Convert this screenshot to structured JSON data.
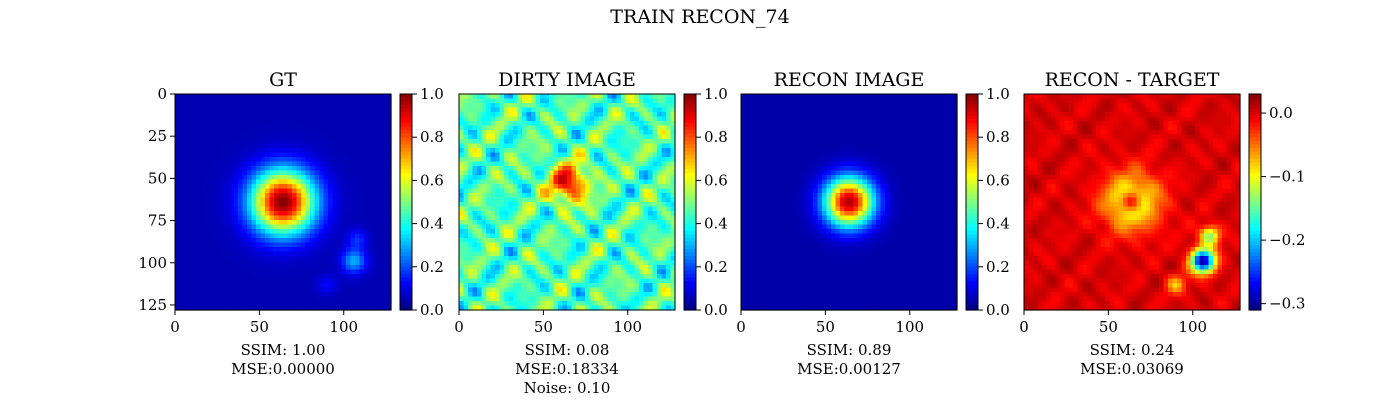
{
  "figure": {
    "title": "TRAIN RECON_74"
  },
  "colormap": [
    "#00007f",
    "#0000ff",
    "#007fff",
    "#00ffff",
    "#7fff7f",
    "#ffff00",
    "#ff7f00",
    "#ff0000",
    "#7f0000"
  ],
  "chart_data": [
    {
      "type": "heatmap",
      "title": "GT",
      "xlim": [
        0,
        128
      ],
      "ylim": [
        128,
        0
      ],
      "xticks": [
        0,
        50,
        100
      ],
      "yticks": [
        0,
        25,
        50,
        75,
        100,
        125
      ],
      "colorbar": {
        "range": [
          0.0,
          1.0
        ],
        "ticks": [
          "0.0",
          "0.2",
          "0.4",
          "0.6",
          "0.8",
          "1.0"
        ],
        "tick_values": [
          0,
          0.2,
          0.4,
          0.6,
          0.8,
          1.0
        ]
      },
      "background_value": 0.05,
      "blobs": [
        {
          "x": 64,
          "y": 64,
          "sigma": 13,
          "amp": 0.95
        },
        {
          "x": 106,
          "y": 99,
          "sigma": 5,
          "amp": 0.25
        },
        {
          "x": 108,
          "y": 86,
          "sigma": 4,
          "amp": 0.12
        },
        {
          "x": 90,
          "y": 113,
          "sigma": 4,
          "amp": 0.08
        }
      ],
      "metrics": [
        "SSIM: 1.00",
        "MSE:0.00000"
      ]
    },
    {
      "type": "heatmap",
      "title": "DIRTY IMAGE",
      "xlim": [
        0,
        128
      ],
      "ylim": [
        128,
        0
      ],
      "xticks": [
        0,
        50,
        100
      ],
      "colorbar": {
        "range": [
          0.0,
          1.0
        ],
        "ticks": [
          "0.0",
          "0.2",
          "0.4",
          "0.6",
          "0.8",
          "1.0"
        ],
        "tick_values": [
          0,
          0.2,
          0.4,
          0.6,
          0.8,
          1.0
        ]
      },
      "background_value": 0.45,
      "noise_amplitude": 0.22,
      "blobs": [
        {
          "x": 65,
          "y": 53,
          "sigma": 8,
          "amp": 0.45
        }
      ],
      "metrics": [
        "SSIM: 0.08",
        "MSE:0.18334",
        "Noise: 0.10"
      ]
    },
    {
      "type": "heatmap",
      "title": "RECON IMAGE",
      "xlim": [
        0,
        128
      ],
      "ylim": [
        128,
        0
      ],
      "xticks": [
        0,
        50,
        100
      ],
      "colorbar": {
        "range": [
          0.0,
          1.0
        ],
        "ticks": [
          "0.0",
          "0.2",
          "0.4",
          "0.6",
          "0.8",
          "1.0"
        ],
        "tick_values": [
          0,
          0.2,
          0.4,
          0.6,
          0.8,
          1.0
        ]
      },
      "background_value": 0.04,
      "blobs": [
        {
          "x": 64,
          "y": 64,
          "sigma": 10,
          "amp": 0.92
        }
      ],
      "metrics": [
        "SSIM: 0.89",
        "MSE:0.00127"
      ]
    },
    {
      "type": "heatmap",
      "title": "RECON - TARGET",
      "xlim": [
        0,
        128
      ],
      "ylim": [
        128,
        0
      ],
      "xticks": [
        0,
        50,
        100
      ],
      "colorbar": {
        "range": [
          -0.31,
          0.03
        ],
        "ticks": [
          "0.0",
          "−0.1",
          "−0.2",
          "−0.3"
        ],
        "tick_values": [
          0.0,
          -0.1,
          -0.2,
          -0.3
        ]
      },
      "background_value": 0.0,
      "noise_amplitude": 0.02,
      "blobs": [
        {
          "x": 64,
          "y": 64,
          "sigma": 12,
          "amp": -0.12
        },
        {
          "x": 64,
          "y": 64,
          "sigma": 4,
          "amp": 0.1
        },
        {
          "x": 106,
          "y": 99,
          "sigma": 5,
          "amp": -0.3
        },
        {
          "x": 110,
          "y": 84,
          "sigma": 4,
          "amp": -0.14
        },
        {
          "x": 90,
          "y": 113,
          "sigma": 4,
          "amp": -0.07
        }
      ],
      "metrics": [
        "SSIM: 0.24",
        "MSE:0.03069"
      ]
    }
  ]
}
